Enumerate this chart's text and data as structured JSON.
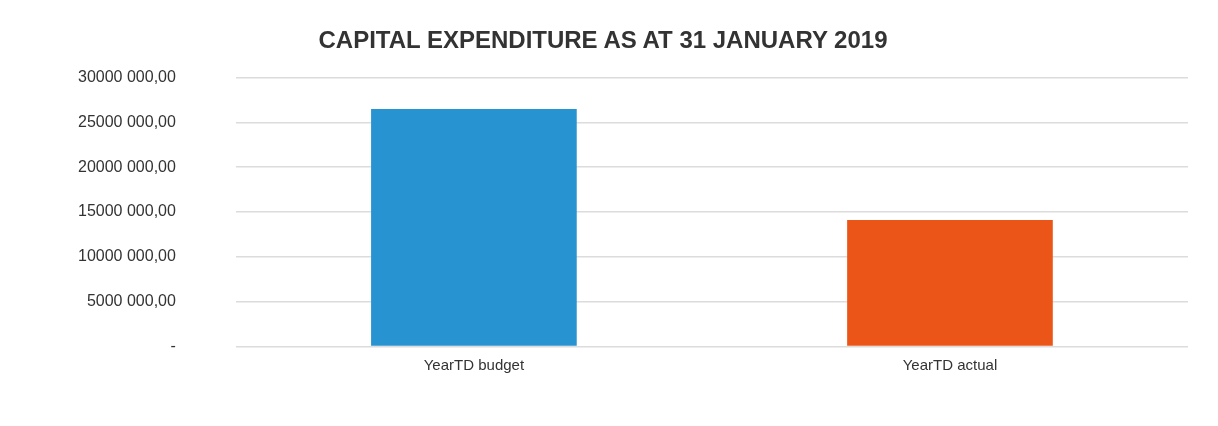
{
  "chart_data": {
    "type": "bar",
    "title": "CAPITAL EXPENDITURE AS AT 31 JANUARY 2019",
    "categories": [
      "YearTD budget",
      "YearTD actual"
    ],
    "values": [
      26500000,
      14100000
    ],
    "colors": [
      "#2893d1",
      "#ec5518"
    ],
    "ylim": [
      0,
      30000000
    ],
    "yticks": [
      {
        "value": 0,
        "label": "-"
      },
      {
        "value": 5000000,
        "label": "5000 000,00"
      },
      {
        "value": 10000000,
        "label": "10000 000,00"
      },
      {
        "value": 15000000,
        "label": "15000 000,00"
      },
      {
        "value": 20000000,
        "label": "20000 000,00"
      },
      {
        "value": 25000000,
        "label": "25000 000,00"
      },
      {
        "value": 30000000,
        "label": "30000 000,00"
      }
    ],
    "grid": "y",
    "legend": false
  }
}
